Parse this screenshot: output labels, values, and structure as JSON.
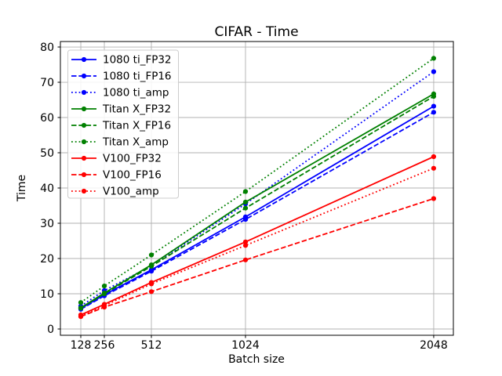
{
  "chart_data": {
    "type": "line",
    "title": "CIFAR - Time",
    "xlabel": "Batch size",
    "ylabel": "Time",
    "grid": true,
    "legend_position": "upper-left",
    "x": [
      128,
      256,
      512,
      1024,
      2048
    ],
    "xticklabels": [
      "128",
      "256",
      "512",
      "1024",
      "2048"
    ],
    "yticks": [
      0,
      10,
      20,
      30,
      40,
      50,
      60,
      70,
      80
    ],
    "xlim": [
      17,
      2155
    ],
    "ylim": [
      -1.78,
      81.56
    ],
    "series": [
      {
        "name": "1080 ti_FP32",
        "color": "#0000ff",
        "style": "solid",
        "marker": "circle",
        "values": [
          5.8,
          9.7,
          16.8,
          31.8,
          63.2
        ]
      },
      {
        "name": "1080 ti_FP16",
        "color": "#0000ff",
        "style": "dashed",
        "marker": "circle",
        "values": [
          5.6,
          9.4,
          16.4,
          31.1,
          61.5
        ]
      },
      {
        "name": "1080 ti_amp",
        "color": "#0000ff",
        "style": "dotted",
        "marker": "circle",
        "values": [
          6.5,
          10.9,
          17.9,
          35.5,
          73.0
        ]
      },
      {
        "name": "Titan X_FP32",
        "color": "#008000",
        "style": "solid",
        "marker": "circle",
        "values": [
          6.0,
          10.2,
          18.2,
          36.0,
          66.7
        ]
      },
      {
        "name": "Titan X_FP16",
        "color": "#008000",
        "style": "dashed",
        "marker": "circle",
        "values": [
          5.9,
          10.0,
          17.8,
          34.3,
          66.0
        ]
      },
      {
        "name": "Titan X_amp",
        "color": "#008000",
        "style": "dotted",
        "marker": "circle",
        "values": [
          7.5,
          12.2,
          21.0,
          39.0,
          76.8
        ]
      },
      {
        "name": "V100_FP32",
        "color": "#ff0000",
        "style": "solid",
        "marker": "circle",
        "values": [
          4.0,
          7.0,
          13.2,
          24.7,
          48.9
        ]
      },
      {
        "name": "V100_FP16",
        "color": "#ff0000",
        "style": "dashed",
        "marker": "circle",
        "values": [
          3.5,
          6.2,
          10.6,
          19.6,
          37.0
        ]
      },
      {
        "name": "V100_amp",
        "color": "#ff0000",
        "style": "dotted",
        "marker": "circle",
        "values": [
          3.7,
          6.6,
          12.8,
          23.7,
          45.6
        ]
      }
    ],
    "colors": {
      "blue": "#0000ff",
      "green": "#008000",
      "red": "#ff0000",
      "gridline": "#b0b0b0",
      "legend_border": "#cccccc"
    }
  }
}
